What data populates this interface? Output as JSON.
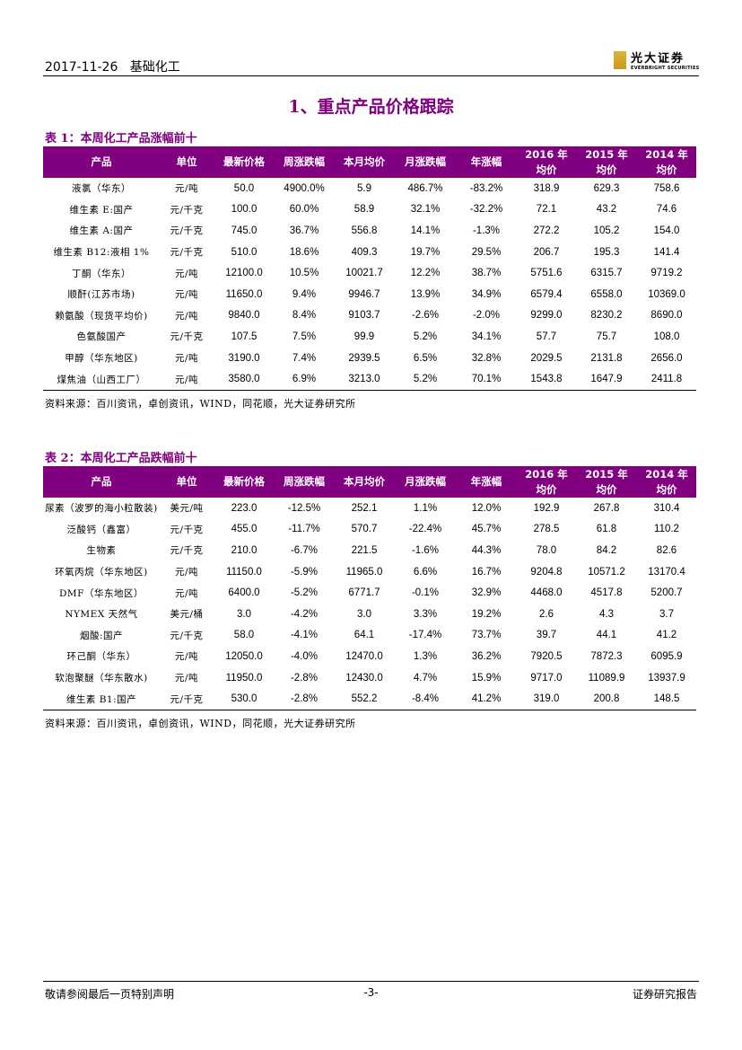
{
  "header": {
    "date": "2017-11-26",
    "category": "基础化工",
    "logo_cn": "光大证券",
    "logo_en": "EVERBRIGHT SECURITIES"
  },
  "section_title": "1、重点产品价格跟踪",
  "columns": [
    "产品",
    "单位",
    "最新价格",
    "周涨跌幅",
    "本月均价",
    "月涨跌幅",
    "年涨幅",
    "2016 年\n均价",
    "2015 年\n均价",
    "2014 年\n均价"
  ],
  "table1": {
    "caption": "表 1：本周化工产品涨幅前十",
    "rows": [
      [
        "液氯（华东）",
        "元/吨",
        "50.0",
        "4900.0%",
        "5.9",
        "486.7%",
        "-83.2%",
        "318.9",
        "629.3",
        "758.6"
      ],
      [
        "维生素 E:国产",
        "元/千克",
        "100.0",
        "60.0%",
        "58.9",
        "32.1%",
        "-32.2%",
        "72.1",
        "43.2",
        "74.6"
      ],
      [
        "维生素 A:国产",
        "元/千克",
        "745.0",
        "36.7%",
        "556.8",
        "14.1%",
        "-1.3%",
        "272.2",
        "105.2",
        "154.0"
      ],
      [
        "维生素 B12:液相 1%",
        "元/千克",
        "510.0",
        "18.6%",
        "409.3",
        "19.7%",
        "29.5%",
        "206.7",
        "195.3",
        "141.4"
      ],
      [
        "丁酮（华东）",
        "元/吨",
        "12100.0",
        "10.5%",
        "10021.7",
        "12.2%",
        "38.7%",
        "5751.6",
        "6315.7",
        "9719.2"
      ],
      [
        "顺酐(江苏市场)",
        "元/吨",
        "11650.0",
        "9.4%",
        "9946.7",
        "13.9%",
        "34.9%",
        "6579.4",
        "6558.0",
        "10369.0"
      ],
      [
        "赖氨酸（现货平均价)",
        "元/吨",
        "9840.0",
        "8.4%",
        "9103.7",
        "-2.6%",
        "-2.0%",
        "9299.0",
        "8230.2",
        "8690.0"
      ],
      [
        "色氨酸国产",
        "元/千克",
        "107.5",
        "7.5%",
        "99.9",
        "5.2%",
        "34.1%",
        "57.7",
        "75.7",
        "108.0"
      ],
      [
        "甲醇（华东地区)",
        "元/吨",
        "3190.0",
        "7.4%",
        "2939.5",
        "6.5%",
        "32.8%",
        "2029.5",
        "2131.8",
        "2656.0"
      ],
      [
        "煤焦油（山西工厂）",
        "元/吨",
        "3580.0",
        "6.9%",
        "3213.0",
        "5.2%",
        "70.1%",
        "1543.8",
        "1647.9",
        "2411.8"
      ]
    ],
    "source": "资料来源：百川资讯，卓创资讯，WIND，同花顺，光大证券研究所"
  },
  "table2": {
    "caption": "表 2：本周化工产品跌幅前十",
    "rows": [
      [
        "尿素（波罗的海小粒散装)",
        "美元/吨",
        "223.0",
        "-12.5%",
        "252.1",
        "1.1%",
        "12.0%",
        "192.9",
        "267.8",
        "310.4"
      ],
      [
        "泛酸钙（鑫富）",
        "元/千克",
        "455.0",
        "-11.7%",
        "570.7",
        "-22.4%",
        "45.7%",
        "278.5",
        "61.8",
        "110.2"
      ],
      [
        "生物素",
        "元/千克",
        "210.0",
        "-6.7%",
        "221.5",
        "-1.6%",
        "44.3%",
        "78.0",
        "84.2",
        "82.6"
      ],
      [
        "环氧丙烷（华东地区)",
        "元/吨",
        "11150.0",
        "-5.9%",
        "11965.0",
        "6.6%",
        "16.7%",
        "9204.8",
        "10571.2",
        "13170.4"
      ],
      [
        "DMF（华东地区）",
        "元/吨",
        "6400.0",
        "-5.2%",
        "6771.7",
        "-0.1%",
        "32.9%",
        "4468.0",
        "4517.8",
        "5200.7"
      ],
      [
        "NYMEX 天然气",
        "美元/桶",
        "3.0",
        "-4.2%",
        "3.0",
        "3.3%",
        "19.2%",
        "2.6",
        "4.3",
        "3.7"
      ],
      [
        "烟酸:国产",
        "元/千克",
        "58.0",
        "-4.1%",
        "64.1",
        "-17.4%",
        "73.7%",
        "39.7",
        "44.1",
        "41.2"
      ],
      [
        "环己酮（华东）",
        "元/吨",
        "12050.0",
        "-4.0%",
        "12470.0",
        "1.3%",
        "36.2%",
        "7920.5",
        "7872.3",
        "6095.9"
      ],
      [
        "软泡聚醚（华东散水)",
        "元/吨",
        "11950.0",
        "-2.8%",
        "12430.0",
        "4.7%",
        "15.9%",
        "9717.0",
        "11089.9",
        "13937.9"
      ],
      [
        "维生素 B1:国产",
        "元/千克",
        "530.0",
        "-2.8%",
        "552.2",
        "-8.4%",
        "41.2%",
        "319.0",
        "200.8",
        "148.5"
      ]
    ],
    "source": "资料来源：百川资讯，卓创资讯，WIND，同花顺，光大证券研究所"
  },
  "footer": {
    "left": "敬请参阅最后一页特别声明",
    "page": "-3-",
    "right": "证券研究报告"
  },
  "colors": {
    "accent": "#800080"
  }
}
